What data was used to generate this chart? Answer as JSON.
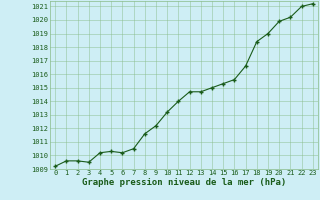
{
  "x": [
    0,
    1,
    2,
    3,
    4,
    5,
    6,
    7,
    8,
    9,
    10,
    11,
    12,
    13,
    14,
    15,
    16,
    17,
    18,
    19,
    20,
    21,
    22,
    23
  ],
  "y": [
    1009.2,
    1009.6,
    1009.6,
    1009.5,
    1010.2,
    1010.3,
    1010.2,
    1010.5,
    1011.6,
    1012.2,
    1013.2,
    1014.0,
    1014.7,
    1014.7,
    1015.0,
    1015.3,
    1015.6,
    1016.6,
    1018.4,
    1019.0,
    1019.9,
    1020.2,
    1021.0,
    1021.2
  ],
  "ylim": [
    1009,
    1021.4
  ],
  "xlim": [
    -0.5,
    23.5
  ],
  "yticks": [
    1009,
    1010,
    1011,
    1012,
    1013,
    1014,
    1015,
    1016,
    1017,
    1018,
    1019,
    1020,
    1021
  ],
  "xticks": [
    0,
    1,
    2,
    3,
    4,
    5,
    6,
    7,
    8,
    9,
    10,
    11,
    12,
    13,
    14,
    15,
    16,
    17,
    18,
    19,
    20,
    21,
    22,
    23
  ],
  "line_color": "#1a5c1a",
  "marker_color": "#1a5c1a",
  "bg_color": "#ceeef5",
  "grid_color": "#88bb88",
  "xlabel": "Graphe pression niveau de la mer (hPa)",
  "xlabel_color": "#1a5c1a",
  "tick_color": "#1a5c1a",
  "tick_fontsize": 5.0,
  "xlabel_fontsize": 6.5,
  "marker": "+"
}
